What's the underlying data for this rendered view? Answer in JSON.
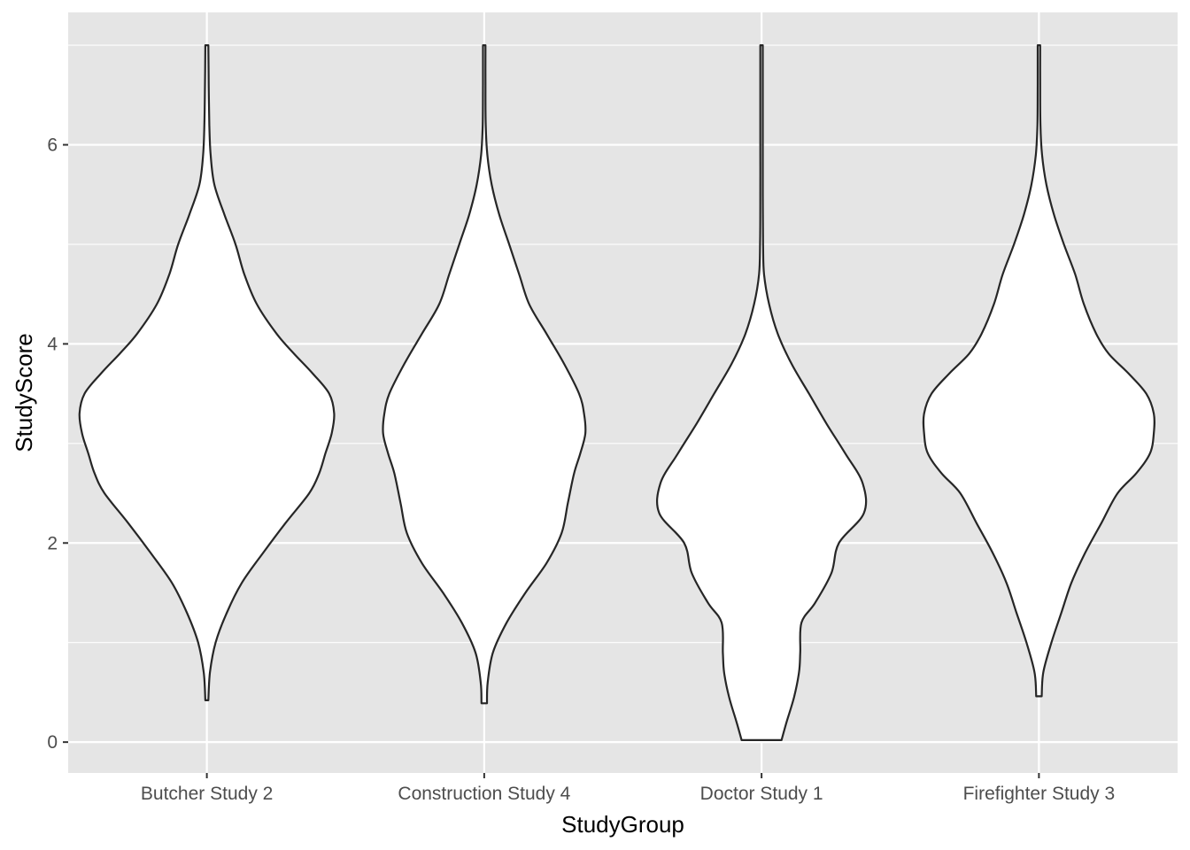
{
  "chart_data": {
    "type": "violin",
    "title": "",
    "xlabel": "StudyGroup",
    "ylabel": "StudyScore",
    "ylim": [
      -0.31,
      7.33
    ],
    "yticks": [
      0,
      2,
      4,
      6
    ],
    "grid": true,
    "legend": "none",
    "colors": {
      "panel": "#e5e5e5",
      "grid": "#ffffff",
      "outline": "#262626",
      "fill": "#ffffff",
      "tick": "#4d4d4d"
    },
    "categories": [
      "Butcher Study 2",
      "Construction Study 4",
      "Doctor Study 1",
      "Firefighter Study 3"
    ],
    "groups": [
      {
        "name": "Butcher Study 2",
        "min": 0.42,
        "max": 7.0,
        "density_profile": [
          [
            0.42,
            0.012
          ],
          [
            0.7,
            0.025
          ],
          [
            1.0,
            0.07
          ],
          [
            1.3,
            0.16
          ],
          [
            1.6,
            0.28
          ],
          [
            1.9,
            0.45
          ],
          [
            2.2,
            0.63
          ],
          [
            2.5,
            0.82
          ],
          [
            2.7,
            0.9
          ],
          [
            2.9,
            0.95
          ],
          [
            3.1,
            1.0
          ],
          [
            3.3,
            1.02
          ],
          [
            3.5,
            0.98
          ],
          [
            3.7,
            0.85
          ],
          [
            3.9,
            0.7
          ],
          [
            4.1,
            0.56
          ],
          [
            4.4,
            0.4
          ],
          [
            4.7,
            0.3
          ],
          [
            5.0,
            0.23
          ],
          [
            5.3,
            0.14
          ],
          [
            5.6,
            0.06
          ],
          [
            5.9,
            0.03
          ],
          [
            6.2,
            0.02
          ],
          [
            6.6,
            0.015
          ],
          [
            7.0,
            0.012
          ]
        ]
      },
      {
        "name": "Construction Study 4",
        "min": 0.39,
        "max": 7.0,
        "density_profile": [
          [
            0.39,
            0.022
          ],
          [
            0.6,
            0.028
          ],
          [
            0.9,
            0.07
          ],
          [
            1.2,
            0.18
          ],
          [
            1.5,
            0.33
          ],
          [
            1.8,
            0.5
          ],
          [
            2.1,
            0.62
          ],
          [
            2.4,
            0.67
          ],
          [
            2.7,
            0.72
          ],
          [
            2.9,
            0.77
          ],
          [
            3.1,
            0.81
          ],
          [
            3.3,
            0.8
          ],
          [
            3.5,
            0.76
          ],
          [
            3.8,
            0.64
          ],
          [
            4.1,
            0.5
          ],
          [
            4.4,
            0.36
          ],
          [
            4.7,
            0.28
          ],
          [
            5.0,
            0.2
          ],
          [
            5.3,
            0.12
          ],
          [
            5.6,
            0.06
          ],
          [
            5.9,
            0.025
          ],
          [
            6.2,
            0.012
          ],
          [
            6.6,
            0.01
          ],
          [
            7.0,
            0.01
          ]
        ]
      },
      {
        "name": "Doctor Study 1",
        "min": 0.02,
        "max": 7.0,
        "density_profile": [
          [
            0.02,
            0.16
          ],
          [
            0.2,
            0.2
          ],
          [
            0.45,
            0.26
          ],
          [
            0.7,
            0.3
          ],
          [
            0.9,
            0.31
          ],
          [
            1.2,
            0.32
          ],
          [
            1.4,
            0.43
          ],
          [
            1.7,
            0.56
          ],
          [
            2.0,
            0.62
          ],
          [
            2.3,
            0.82
          ],
          [
            2.6,
            0.81
          ],
          [
            2.9,
            0.67
          ],
          [
            3.2,
            0.52
          ],
          [
            3.5,
            0.38
          ],
          [
            3.8,
            0.24
          ],
          [
            4.1,
            0.13
          ],
          [
            4.4,
            0.06
          ],
          [
            4.7,
            0.02
          ],
          [
            5.0,
            0.012
          ],
          [
            5.5,
            0.01
          ],
          [
            6.0,
            0.01
          ],
          [
            6.5,
            0.01
          ],
          [
            7.0,
            0.01
          ]
        ]
      },
      {
        "name": "Firefighter Study 3",
        "min": 0.46,
        "max": 7.0,
        "density_profile": [
          [
            0.46,
            0.022
          ],
          [
            0.7,
            0.035
          ],
          [
            1.0,
            0.1
          ],
          [
            1.3,
            0.18
          ],
          [
            1.6,
            0.26
          ],
          [
            1.9,
            0.37
          ],
          [
            2.2,
            0.5
          ],
          [
            2.5,
            0.63
          ],
          [
            2.7,
            0.78
          ],
          [
            2.9,
            0.89
          ],
          [
            3.1,
            0.92
          ],
          [
            3.3,
            0.92
          ],
          [
            3.5,
            0.86
          ],
          [
            3.7,
            0.72
          ],
          [
            3.9,
            0.56
          ],
          [
            4.1,
            0.46
          ],
          [
            4.4,
            0.36
          ],
          [
            4.7,
            0.29
          ],
          [
            5.0,
            0.2
          ],
          [
            5.3,
            0.12
          ],
          [
            5.6,
            0.06
          ],
          [
            5.9,
            0.025
          ],
          [
            6.2,
            0.012
          ],
          [
            6.6,
            0.01
          ],
          [
            7.0,
            0.01
          ]
        ]
      }
    ]
  }
}
